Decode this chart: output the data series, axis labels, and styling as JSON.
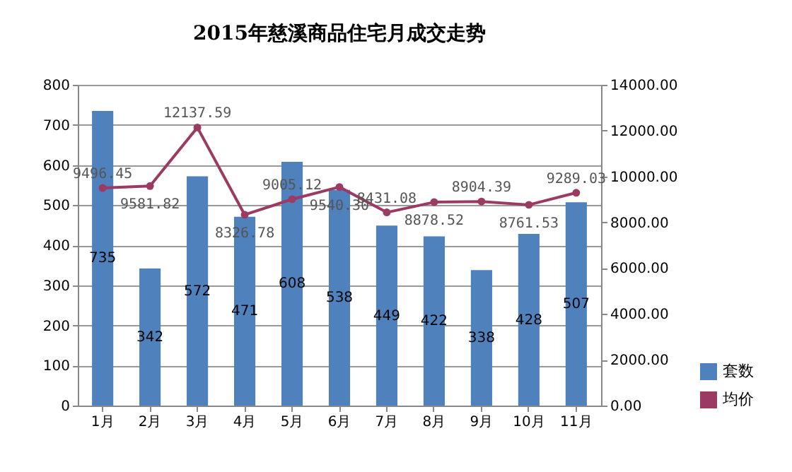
{
  "chart_data": {
    "type": "bar",
    "title": "2015年慈溪商品住宅月成交走势",
    "categories": [
      "1月",
      "2月",
      "3月",
      "4月",
      "5月",
      "6月",
      "7月",
      "8月",
      "9月",
      "10月",
      "11月"
    ],
    "series": [
      {
        "name": "套数",
        "color": "#4f81bd",
        "values": [
          735,
          342,
          572,
          471,
          608,
          538,
          449,
          422,
          338,
          428,
          507
        ],
        "value_labels": [
          "735",
          "342",
          "572",
          "471",
          "608",
          "538",
          "449",
          "422",
          "338",
          "428",
          "507"
        ]
      },
      {
        "name": "均价",
        "type": "line",
        "axis": "y2",
        "color": "#9b3a62",
        "marker": "circle",
        "values": [
          9496.45,
          9581.82,
          12137.59,
          8326.78,
          9005.12,
          9540.3,
          8431.08,
          8878.52,
          8904.39,
          8761.53,
          9289.03
        ],
        "value_labels": [
          "9496.45",
          "9581.82",
          "12137.59",
          "8326.78",
          "9005.12",
          "9540.30",
          "8431.08",
          "8878.52",
          "8904.39",
          "8761.53",
          "9289.03"
        ]
      }
    ],
    "ylim": [
      0,
      800
    ],
    "yticks": [
      0,
      100,
      200,
      300,
      400,
      500,
      600,
      700,
      800
    ],
    "y2lim": [
      0,
      14000
    ],
    "y2ticks": [
      {
        "value": 0,
        "label": "0.00"
      },
      {
        "value": 2000,
        "label": "2000.00"
      },
      {
        "value": 4000,
        "label": "4000.00"
      },
      {
        "value": 6000,
        "label": "6000.00"
      },
      {
        "value": 8000,
        "label": "8000.00"
      },
      {
        "value": 10000,
        "label": "10000.00"
      },
      {
        "value": 12000,
        "label": "12000.00"
      },
      {
        "value": 14000,
        "label": "14000.00"
      }
    ],
    "grid": "y",
    "legend": "bottom right"
  }
}
